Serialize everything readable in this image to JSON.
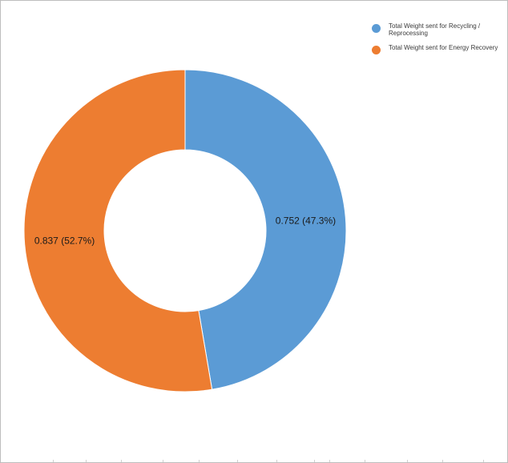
{
  "chart_data": {
    "type": "pie",
    "donut": true,
    "slices": [
      {
        "label": "Total Weight sent for Recycling / Reprocessing",
        "value": 0.752,
        "percent": 47.3,
        "color": "#5b9bd5",
        "data_label": "0.752 (47.3%)"
      },
      {
        "label": "Total Weight sent for Energy Recovery",
        "value": 0.837,
        "percent": 52.7,
        "color": "#ed7d31",
        "data_label": "0.837 (52.7%)"
      }
    ],
    "legend_position": "top-right"
  },
  "legend": {
    "items": [
      {
        "label": "Total Weight sent for Recycling / Reprocessing",
        "color": "#5b9bd5"
      },
      {
        "label": "Total Weight sent for Energy Recovery",
        "color": "#ed7d31"
      }
    ]
  }
}
